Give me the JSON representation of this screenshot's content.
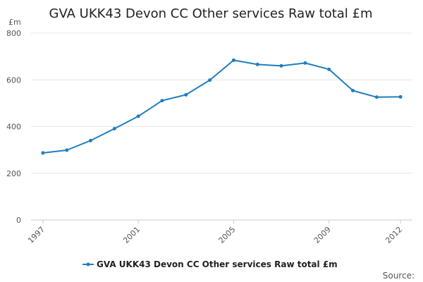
{
  "chart_data": {
    "type": "line",
    "title": "GVA UKK43 Devon CC Other services Raw total £m",
    "ylabel": "£m",
    "xlabel": "",
    "ylim": [
      0,
      800
    ],
    "yticks": [
      "0",
      "200",
      "400",
      "600",
      "800"
    ],
    "ytick_values": [
      0,
      200,
      400,
      600,
      800
    ],
    "xticks": [
      "1997",
      "2001",
      "2005",
      "2009",
      "2012"
    ],
    "xtick_values": [
      1997,
      2001,
      2005,
      2009,
      2012
    ],
    "grid": true,
    "legend_position": "bottom",
    "series": [
      {
        "name": "GVA UKK43 Devon CC Other services Raw total £m",
        "color": "#1f7dc1",
        "x": [
          1997,
          1998,
          1999,
          2000,
          2001,
          2002,
          2003,
          2004,
          2005,
          2006,
          2007,
          2008,
          2009,
          2010,
          2011,
          2012
        ],
        "values": [
          287,
          299,
          340,
          391,
          444,
          511,
          536,
          599,
          684,
          666,
          660,
          672,
          645,
          554,
          526,
          527
        ]
      }
    ]
  },
  "footer": {
    "source_label": "Source:"
  }
}
